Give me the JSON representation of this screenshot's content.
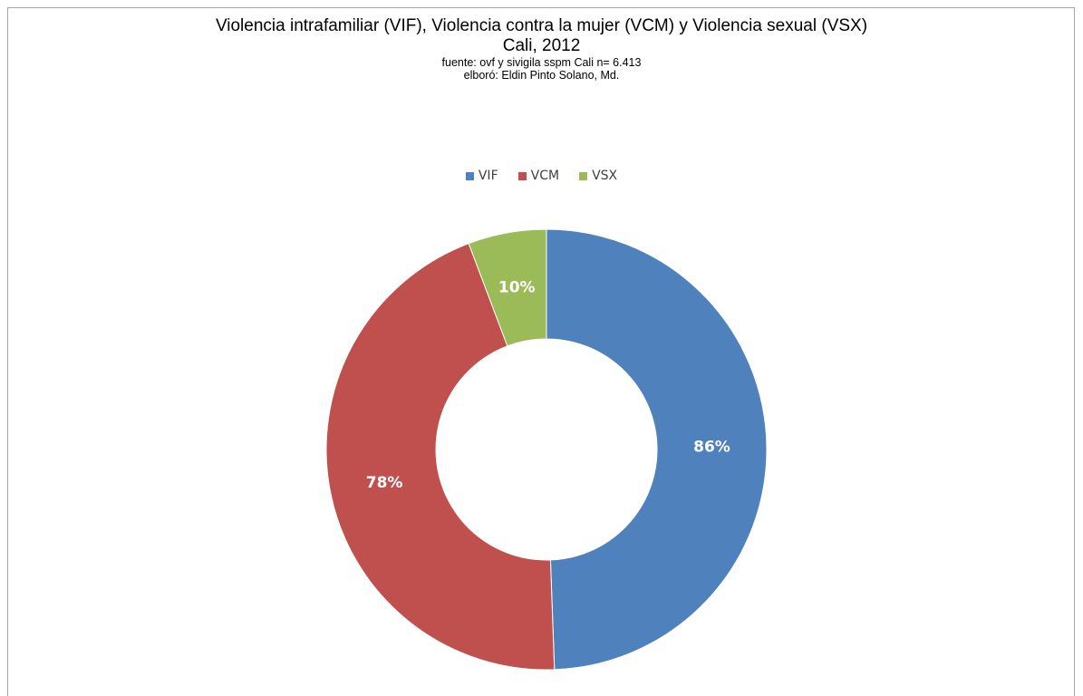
{
  "chart_data": {
    "type": "pie",
    "style": "donut",
    "title": "Violencia intrafamiliar (VIF), Violencia contra la mujer (VCM) y Violencia sexual (VSX)",
    "subtitle": "Cali, 2012",
    "source_note": "fuente: ovf y sivigila sspm Cali   n= 6.413",
    "author_note": "elboró: Eldin Pinto Solano, Md.",
    "legend_position": "top",
    "categories": [
      "VIF",
      "VCM",
      "VSX"
    ],
    "values": [
      86,
      78,
      10
    ],
    "data_labels": [
      "86%",
      "78%",
      "10%"
    ],
    "colors": [
      "#4f81bd",
      "#c0504d",
      "#9bbb59"
    ]
  }
}
